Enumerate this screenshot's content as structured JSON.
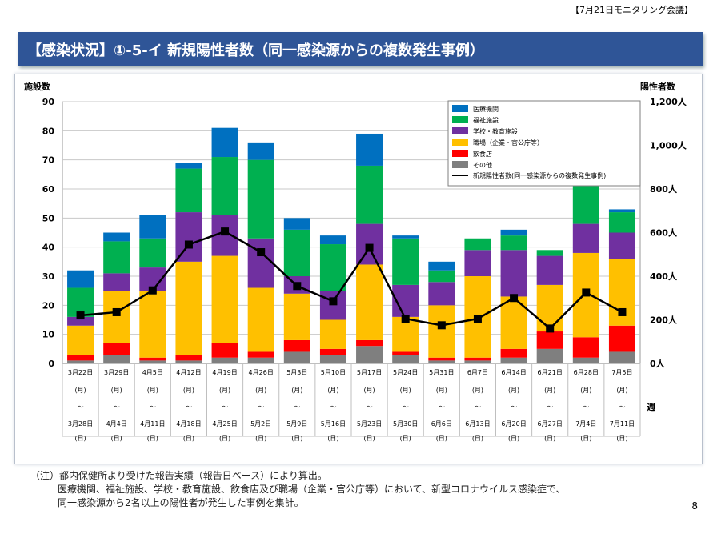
{
  "header": {
    "meeting_label": "【7月21日モニタリング会議】",
    "title": "【感染状況】①-5-イ 新規陽性者数（同一感染源からの複数発生事例）"
  },
  "chart_data": {
    "type": "bar",
    "stacked": true,
    "ylabel_left": "施設数",
    "ylabel_right": "陽性者数",
    "ylim_left": [
      0,
      90
    ],
    "yticks_left": [
      "0",
      "10",
      "20",
      "30",
      "40",
      "50",
      "60",
      "70",
      "80",
      "90"
    ],
    "ylim_right": [
      0,
      1200
    ],
    "yticks_right": [
      "0人",
      "200人",
      "400人",
      "600人",
      "800人",
      "1,000人",
      "1,200人"
    ],
    "week_label": "週",
    "categories": [
      {
        "start": "3月22日",
        "mid1": "(月)",
        "tilde": "～",
        "end": "3月28日",
        "mid2": "(日)"
      },
      {
        "start": "3月29日",
        "mid1": "(月)",
        "tilde": "～",
        "end": "4月4日",
        "mid2": "(日)"
      },
      {
        "start": "4月5日",
        "mid1": "(月)",
        "tilde": "～",
        "end": "4月11日",
        "mid2": "(日)"
      },
      {
        "start": "4月12日",
        "mid1": "(月)",
        "tilde": "～",
        "end": "4月18日",
        "mid2": "(日)"
      },
      {
        "start": "4月19日",
        "mid1": "(月)",
        "tilde": "～",
        "end": "4月25日",
        "mid2": "(日)"
      },
      {
        "start": "4月26日",
        "mid1": "(月)",
        "tilde": "～",
        "end": "5月2日",
        "mid2": "(日)"
      },
      {
        "start": "5月3日",
        "mid1": "(月)",
        "tilde": "～",
        "end": "5月9日",
        "mid2": "(日)"
      },
      {
        "start": "5月10日",
        "mid1": "(月)",
        "tilde": "～",
        "end": "5月16日",
        "mid2": "(日)"
      },
      {
        "start": "5月17日",
        "mid1": "(月)",
        "tilde": "～",
        "end": "5月23日",
        "mid2": "(日)"
      },
      {
        "start": "5月24日",
        "mid1": "(月)",
        "tilde": "～",
        "end": "5月30日",
        "mid2": "(日)"
      },
      {
        "start": "5月31日",
        "mid1": "(月)",
        "tilde": "～",
        "end": "6月6日",
        "mid2": "(日)"
      },
      {
        "start": "6月7日",
        "mid1": "(月)",
        "tilde": "～",
        "end": "6月13日",
        "mid2": "(日)"
      },
      {
        "start": "6月14日",
        "mid1": "(月)",
        "tilde": "～",
        "end": "6月20日",
        "mid2": "(日)"
      },
      {
        "start": "6月21日",
        "mid1": "(月)",
        "tilde": "～",
        "end": "6月27日",
        "mid2": "(日)"
      },
      {
        "start": "6月28日",
        "mid1": "(月)",
        "tilde": "～",
        "end": "7月4日",
        "mid2": "(日)"
      },
      {
        "start": "7月5日",
        "mid1": "(月)",
        "tilde": "～",
        "end": "7月11日",
        "mid2": "(日)"
      }
    ],
    "series": [
      {
        "name": "その他",
        "color": "#7f7f7f",
        "values": [
          1,
          3,
          1,
          1,
          2,
          2,
          4,
          3,
          6,
          3,
          1,
          1,
          2,
          5,
          2,
          4
        ]
      },
      {
        "name": "飲食店",
        "color": "#ff0000",
        "values": [
          2,
          4,
          1,
          2,
          5,
          2,
          4,
          2,
          2,
          1,
          1,
          1,
          3,
          6,
          7,
          9
        ]
      },
      {
        "name": "職場（企業・官公庁等）",
        "color": "#ffc000",
        "values": [
          10,
          18,
          23,
          32,
          30,
          22,
          16,
          10,
          26,
          12,
          18,
          28,
          18,
          16,
          29,
          23
        ]
      },
      {
        "name": "学校・教育施設",
        "color": "#7030a0",
        "values": [
          3,
          6,
          8,
          17,
          14,
          17,
          6,
          10,
          14,
          11,
          8,
          9,
          16,
          10,
          10,
          9
        ]
      },
      {
        "name": "福祉施設",
        "color": "#00b050",
        "values": [
          10,
          11,
          10,
          15,
          20,
          27,
          16,
          16,
          20,
          16,
          4,
          4,
          5,
          2,
          14,
          7
        ]
      },
      {
        "name": "医療機関",
        "color": "#0070c0",
        "values": [
          6,
          3,
          8,
          2,
          10,
          6,
          4,
          3,
          11,
          1,
          3,
          0,
          2,
          0,
          2,
          1
        ]
      }
    ],
    "line": {
      "name": "新規陽性者数(同一感染源からの複数発生事例)",
      "color": "#000000",
      "values": [
        220,
        235,
        335,
        545,
        605,
        510,
        355,
        285,
        530,
        205,
        175,
        205,
        300,
        160,
        325,
        235
      ]
    },
    "legend_position": "top-right"
  },
  "notes": [
    "（注）都内保健所より受けた報告実績（報告日ベース）により算出。",
    "医療機関、福祉施設、学校・教育施設、飲食店及び職場（企業・官公庁等）において、新型コロナウイルス感染症で、",
    "同一感染源から2名以上の陽性者が発生した事例を集計。"
  ],
  "page_number": "8"
}
